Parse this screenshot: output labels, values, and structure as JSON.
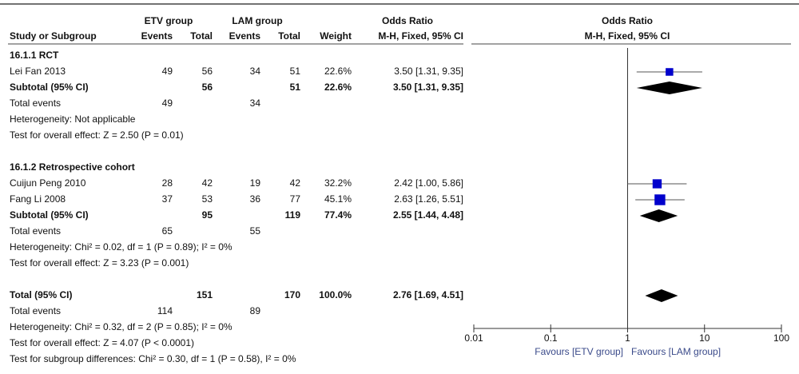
{
  "chart_data": {
    "type": "forest",
    "group1": "ETV group",
    "group2": "LAM group",
    "table_header": "Odds Ratio",
    "table_method": "M-H, Fixed, 95% CI",
    "col_study": "Study or Subgroup",
    "col_events1": "Events",
    "col_total1": "Total",
    "col_events2": "Events",
    "col_total2": "Total",
    "col_weight": "Weight",
    "plot_header": "Odds Ratio",
    "plot_method": "M-H, Fixed, 95% CI",
    "x_left_label": "Favours [ETV group]",
    "x_right_label": "Favours [LAM group]",
    "log_x": true,
    "xlim": [
      0.01,
      100
    ],
    "xticks": [
      {
        "value": 0.01,
        "label": "0.01"
      },
      {
        "value": 0.1,
        "label": "0.1"
      },
      1,
      10,
      100
    ],
    "square_color": "#0000cc",
    "rows": [
      {
        "kind": "heading",
        "label": "16.1.1 RCT"
      },
      {
        "kind": "study",
        "label": "Lei Fan 2013",
        "events1": 49,
        "total1": 56,
        "events2": 34,
        "total2": 51,
        "weight": 22.6,
        "weight_label": "22.6%",
        "or": 3.5,
        "lo": 1.31,
        "hi": 9.35,
        "ci_label": "3.50 [1.31, 9.35]"
      },
      {
        "kind": "subtotal",
        "label": "Subtotal (95% CI)",
        "total1": 56,
        "total2": 51,
        "weight": 22.6,
        "weight_label": "22.6%",
        "or": 3.5,
        "lo": 1.31,
        "hi": 9.35,
        "ci_label": "3.50 [1.31, 9.35]"
      },
      {
        "kind": "events",
        "label": "Total events",
        "events1": 49,
        "events2": 34
      },
      {
        "kind": "note",
        "label": "Heterogeneity: Not applicable"
      },
      {
        "kind": "note",
        "label": "Test for overall effect: Z = 2.50 (P = 0.01)"
      },
      {
        "kind": "heading",
        "label": "16.1.2 Retrospective cohort"
      },
      {
        "kind": "study",
        "label": "Cuijun Peng 2010",
        "events1": 28,
        "total1": 42,
        "events2": 19,
        "total2": 42,
        "weight": 32.2,
        "weight_label": "32.2%",
        "or": 2.42,
        "lo": 1.0,
        "hi": 5.86,
        "ci_label": "2.42 [1.00, 5.86]"
      },
      {
        "kind": "study",
        "label": "Fang Li 2008",
        "events1": 37,
        "total1": 53,
        "events2": 36,
        "total2": 77,
        "weight": 45.1,
        "weight_label": "45.1%",
        "or": 2.63,
        "lo": 1.26,
        "hi": 5.51,
        "ci_label": "2.63 [1.26, 5.51]"
      },
      {
        "kind": "subtotal",
        "label": "Subtotal (95% CI)",
        "total1": 95,
        "total2": 119,
        "weight": 77.4,
        "weight_label": "77.4%",
        "or": 2.55,
        "lo": 1.44,
        "hi": 4.48,
        "ci_label": "2.55 [1.44, 4.48]"
      },
      {
        "kind": "events",
        "label": "Total events",
        "events1": 65,
        "events2": 55
      },
      {
        "kind": "note",
        "label": "Heterogeneity: Chi² = 0.02, df = 1 (P = 0.89); I² = 0%"
      },
      {
        "kind": "note",
        "label": "Test for overall effect: Z = 3.23 (P = 0.001)"
      },
      {
        "kind": "total",
        "label": "Total (95% CI)",
        "total1": 151,
        "total2": 170,
        "weight": 100.0,
        "weight_label": "100.0%",
        "or": 2.76,
        "lo": 1.69,
        "hi": 4.51,
        "ci_label": "2.76 [1.69, 4.51]"
      },
      {
        "kind": "events",
        "label": "Total events",
        "events1": 114,
        "events2": 89
      },
      {
        "kind": "note",
        "label": "Heterogeneity: Chi² = 0.32, df = 2 (P = 0.85); I² = 0%"
      },
      {
        "kind": "note",
        "label": "Test for overall effect: Z = 4.07 (P < 0.0001)"
      },
      {
        "kind": "note",
        "label": "Test for subgroup differences: Chi² = 0.30, df = 1 (P = 0.58), I² = 0%"
      }
    ]
  }
}
